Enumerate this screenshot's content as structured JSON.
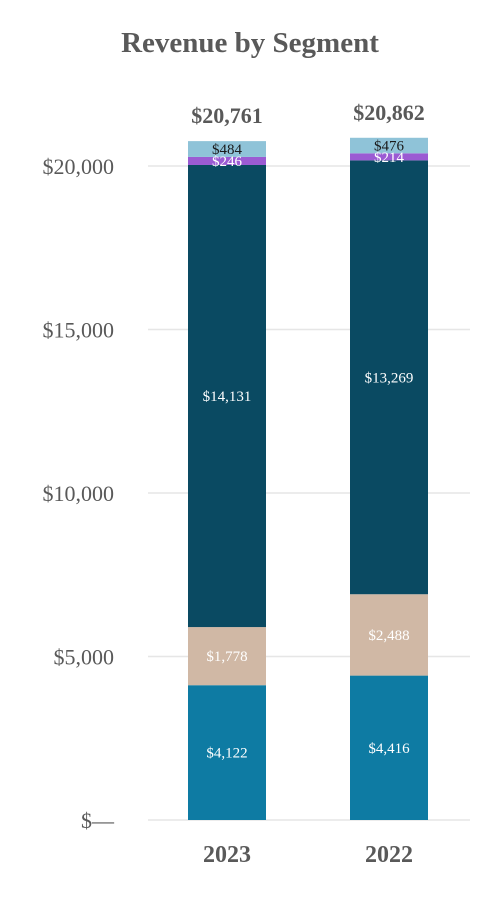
{
  "chart_data": {
    "type": "bar",
    "stacked": true,
    "title": "Revenue by Segment",
    "xlabel": "",
    "ylabel": "",
    "categories": [
      "2023",
      "2022"
    ],
    "ylim": [
      0,
      20000
    ],
    "yticks": [
      0,
      5000,
      10000,
      15000,
      20000
    ],
    "ytick_labels": [
      "$—",
      "$5,000",
      "$10,000",
      "$15,000",
      "$20,000"
    ],
    "grid": true,
    "totals": [
      20761,
      20862
    ],
    "total_labels": [
      "$20,761",
      "$20,862"
    ],
    "series": [
      {
        "values": [
          4122,
          4416
        ],
        "labels": [
          "$4,122",
          "$4,416"
        ],
        "color": "#0e7ba3",
        "label_color": "#ffffff"
      },
      {
        "values": [
          1778,
          2488
        ],
        "labels": [
          "$1,778",
          "$2,488"
        ],
        "color": "#d0b8a5",
        "label_color": "#ffffff"
      },
      {
        "values": [
          14131,
          13269
        ],
        "labels": [
          "$14,131",
          "$13,269"
        ],
        "color": "#0a4a62",
        "label_color": "#ffffff"
      },
      {
        "values": [
          246,
          214
        ],
        "labels": [
          "$246",
          "$214"
        ],
        "color": "#9b5bd3",
        "label_color": "#ffffff"
      },
      {
        "values": [
          484,
          476
        ],
        "labels": [
          "$484",
          "$476"
        ],
        "color": "#8fc3d8",
        "label_color": "#1a1a1a"
      }
    ]
  }
}
